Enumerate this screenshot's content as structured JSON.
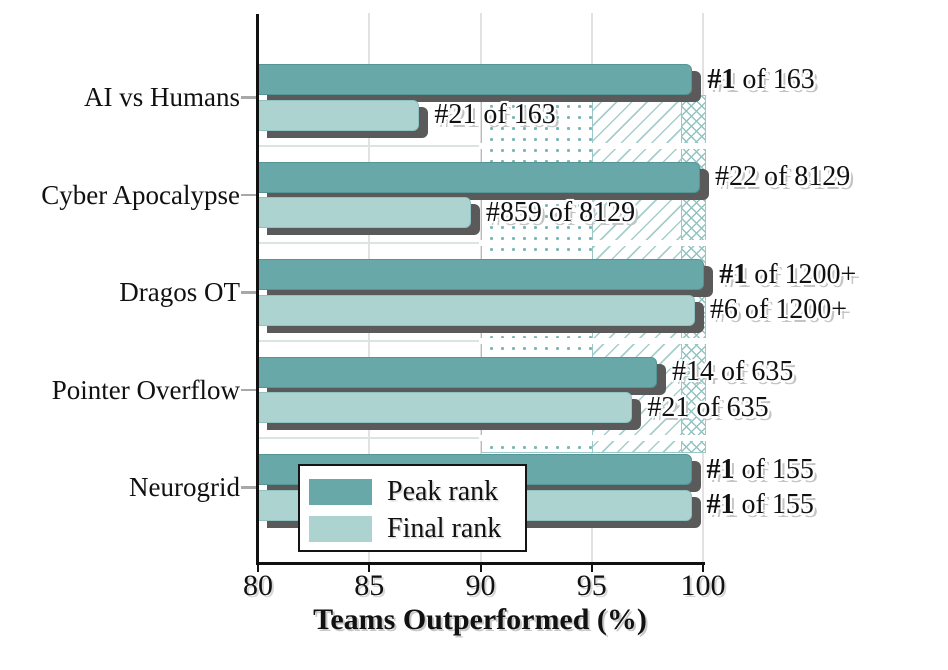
{
  "chart_data": {
    "type": "bar",
    "orientation": "horizontal",
    "title": "",
    "xlabel": "Teams Outperformed (%)",
    "ylabel": "",
    "xlim": [
      80,
      100
    ],
    "xticks": [
      80,
      85,
      90,
      95,
      100
    ],
    "grid": {
      "vertical": true,
      "row_separators": true
    },
    "categories": [
      "AI vs Humans",
      "Cyber Apocalypse",
      "Dragos OT",
      "Pointer Overflow",
      "Neurogrid"
    ],
    "series": [
      {
        "name": "Peak rank",
        "color": "#69a8a8",
        "edge_color": "#569596",
        "values": [
          99.39,
          99.73,
          99.92,
          97.8,
          99.35
        ],
        "labels": [
          {
            "bold": "#1",
            "rest": " of 163"
          },
          {
            "bold": "",
            "rest": "#22 of 8129"
          },
          {
            "bold": "#1",
            "rest": " of 1200+"
          },
          {
            "bold": "",
            "rest": "#14 of 635"
          },
          {
            "bold": "#1",
            "rest": " of 155"
          }
        ]
      },
      {
        "name": "Final rank",
        "color": "#add3d1",
        "edge_color": "#8fc2c0",
        "values": [
          87.12,
          89.43,
          99.5,
          96.69,
          99.35
        ],
        "labels": [
          {
            "bold": "",
            "rest": "#21 of 163"
          },
          {
            "bold": "",
            "rest": "#859 of 8129"
          },
          {
            "bold": "",
            "rest": "#6 of 1200+"
          },
          {
            "bold": "",
            "rest": "#21 of 635"
          },
          {
            "bold": "#1",
            "rest": " of 155"
          }
        ]
      }
    ],
    "bands": [
      {
        "name": "percentile-band-dotted",
        "pattern": "dots",
        "from": 90,
        "to": 95
      },
      {
        "name": "percentile-band-diagonal",
        "pattern": "diagonal",
        "from": 95,
        "to": 99
      },
      {
        "name": "percentile-band-crosshatch",
        "pattern": "crosshatch",
        "from": 99,
        "to": 100
      }
    ],
    "legend": {
      "position": "lower-left-inside",
      "entries": [
        "Peak rank",
        "Final rank"
      ]
    }
  },
  "colors": {
    "peak": "#69a8a8",
    "peak_edge": "#569596",
    "final": "#add3d1",
    "final_edge": "#8fc2c0",
    "shadow": "#5a5a5a",
    "dot": "#7db7b7",
    "hatch": "#a6cecd",
    "cross": "#92c3c3",
    "band_border": "#9ac7c7",
    "vgrid": "#e2e2e2",
    "hgrid": "#d8e5e5",
    "spine": "#111111",
    "ytick": "#a8a8a8",
    "text": "#111111"
  }
}
